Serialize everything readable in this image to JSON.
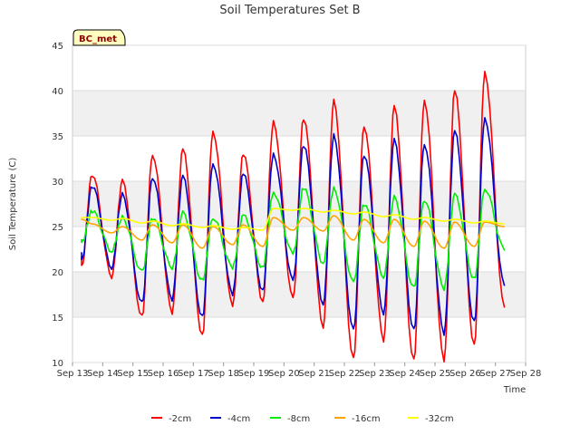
{
  "chart_data": {
    "type": "line",
    "title": "Soil Temperatures Set B",
    "xlabel": "Time",
    "ylabel": "Soil Temperature (C)",
    "site_label": "BC_met",
    "xlim": [
      13,
      28
    ],
    "ylim": [
      10,
      45
    ],
    "x_tick_labels": [
      "Sep 13",
      "Sep 14",
      "Sep 15",
      "Sep 16",
      "Sep 17",
      "Sep 18",
      "Sep 19",
      "Sep 20",
      "Sep 21",
      "Sep 22",
      "Sep 23",
      "Sep 24",
      "Sep 25",
      "Sep 26",
      "Sep 27",
      "Sep 28"
    ],
    "y_ticks": [
      10,
      15,
      20,
      25,
      30,
      35,
      40,
      45
    ],
    "grid": "horizontal bands",
    "legend_position": "bottom",
    "x_start": 13.3,
    "x_end": 27.3,
    "series": [
      {
        "name": "-2cm",
        "color": "#ff0000",
        "max": [
          30.8,
          30.0,
          33.0,
          33.5,
          35.5,
          33.0,
          36.5,
          37.0,
          38.8,
          36.2,
          38.2,
          39.0,
          40.0,
          42.0
        ],
        "min": [
          20.5,
          19.5,
          15.0,
          15.5,
          13.0,
          16.2,
          16.8,
          17.0,
          14.0,
          10.3,
          12.5,
          10.2,
          10.2,
          12.0,
          16.0
        ]
      },
      {
        "name": "-4cm",
        "color": "#0000cc",
        "max": [
          29.5,
          28.5,
          30.5,
          30.5,
          32.0,
          30.8,
          33.0,
          34.0,
          35.0,
          33.0,
          34.5,
          34.2,
          35.5,
          37.0
        ],
        "min": [
          21.2,
          20.5,
          16.5,
          17.0,
          15.0,
          17.5,
          18.0,
          19.0,
          16.5,
          13.5,
          15.5,
          13.5,
          13.2,
          14.5,
          18.5
        ]
      },
      {
        "name": "-8cm",
        "color": "#00ee00",
        "max": [
          26.7,
          26.0,
          26.0,
          26.5,
          26.0,
          26.2,
          28.8,
          29.2,
          29.2,
          27.5,
          28.2,
          28.0,
          28.5,
          29.2
        ],
        "min": [
          23.2,
          22.3,
          20.0,
          20.5,
          19.0,
          20.5,
          20.5,
          22.0,
          21.0,
          18.8,
          19.5,
          18.2,
          18.2,
          19.2,
          22.5
        ]
      },
      {
        "name": "-16cm",
        "color": "#ffa500",
        "max": [
          25.3,
          25.0,
          25.2,
          25.2,
          25.0,
          25.2,
          26.0,
          26.0,
          26.2,
          25.8,
          25.8,
          25.6,
          25.5,
          25.5
        ],
        "min": [
          25.8,
          24.3,
          23.5,
          23.2,
          22.6,
          23.0,
          22.8,
          24.6,
          24.5,
          23.5,
          23.2,
          22.8,
          22.6,
          22.8,
          25.0
        ]
      },
      {
        "name": "-32cm",
        "color": "#ffff00",
        "max": [
          26.0,
          25.9,
          25.6,
          25.3,
          25.1,
          24.9,
          27.0,
          27.0,
          26.8,
          26.6,
          26.3,
          26.0,
          25.8,
          25.6
        ],
        "min": [
          26.0,
          25.7,
          25.4,
          25.1,
          24.9,
          24.7,
          24.6,
          26.8,
          26.6,
          26.4,
          26.1,
          25.8,
          25.6,
          25.4,
          25.3
        ]
      }
    ]
  }
}
